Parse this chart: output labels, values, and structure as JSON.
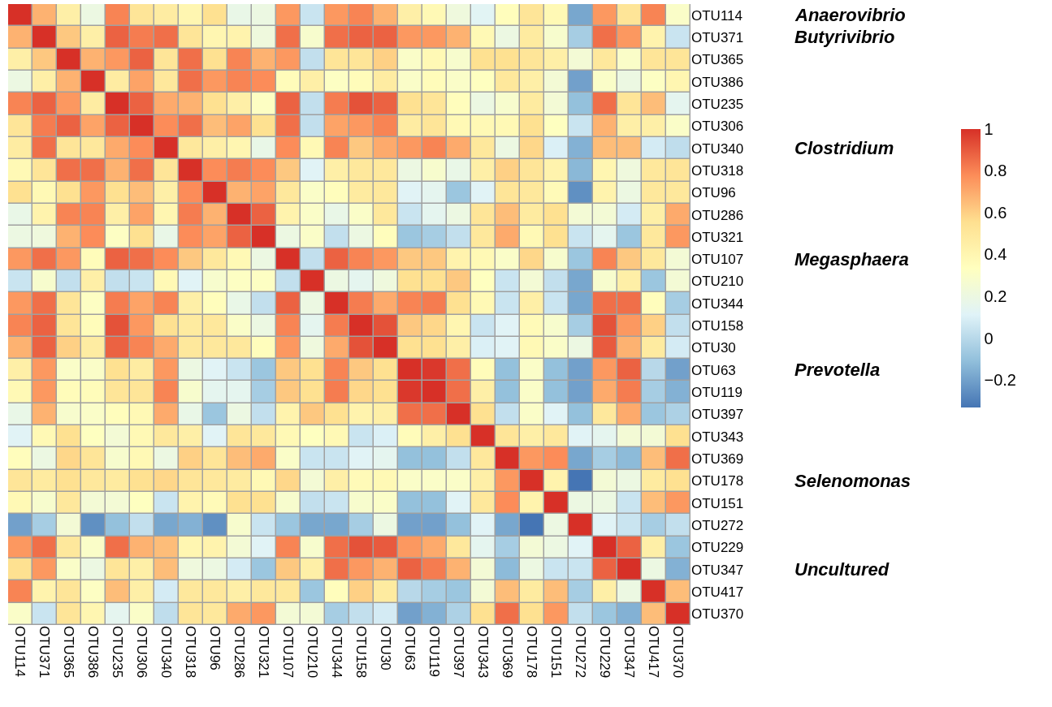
{
  "chart_data": {
    "type": "heatmap",
    "categories": [
      "OTU114",
      "OTU371",
      "OTU365",
      "OTU386",
      "OTU235",
      "OTU306",
      "OTU340",
      "OTU318",
      "OTU96",
      "OTU286",
      "OTU321",
      "OTU107",
      "OTU210",
      "OTU344",
      "OTU158",
      "OTU30",
      "OTU63",
      "OTU119",
      "OTU397",
      "OTU343",
      "OTU369",
      "OTU178",
      "OTU151",
      "OTU272",
      "OTU229",
      "OTU347",
      "OTU417",
      "OTU370"
    ],
    "y_categories": [
      "OTU114",
      "OTU371",
      "OTU365",
      "OTU386",
      "OTU235",
      "OTU306",
      "OTU340",
      "OTU318",
      "OTU96",
      "OTU286",
      "OTU321",
      "OTU107",
      "OTU210",
      "OTU344",
      "OTU158",
      "OTU30",
      "OTU63",
      "OTU119",
      "OTU397",
      "OTU343",
      "OTU369",
      "OTU178",
      "OTU151",
      "OTU272",
      "OTU229",
      "OTU347",
      "OTU417",
      "OTU370"
    ],
    "cells": [
      [
        1.0,
        0.68,
        0.45,
        0.2,
        0.8,
        0.52,
        0.47,
        0.4,
        0.55,
        0.18,
        0.2,
        0.75,
        0.05,
        0.75,
        0.8,
        0.68,
        0.45,
        0.38,
        0.22,
        0.13,
        0.35,
        0.52,
        0.38,
        -0.18,
        0.75,
        0.52,
        0.8,
        0.3
      ],
      [
        0.68,
        1.0,
        0.62,
        0.45,
        0.88,
        0.82,
        0.85,
        0.52,
        0.4,
        0.42,
        0.22,
        0.85,
        0.28,
        0.85,
        0.88,
        0.88,
        0.75,
        0.75,
        0.68,
        0.38,
        0.2,
        0.48,
        0.28,
        -0.05,
        0.85,
        0.75,
        0.42,
        0.05
      ],
      [
        0.45,
        0.62,
        1.0,
        0.68,
        0.75,
        0.88,
        0.52,
        0.85,
        0.55,
        0.8,
        0.68,
        0.75,
        0.03,
        0.52,
        0.52,
        0.6,
        0.3,
        0.38,
        0.28,
        0.55,
        0.55,
        0.52,
        0.45,
        0.25,
        0.5,
        0.3,
        0.52,
        0.52
      ],
      [
        0.2,
        0.45,
        0.68,
        1.0,
        0.47,
        0.72,
        0.5,
        0.85,
        0.75,
        0.8,
        0.78,
        0.36,
        0.45,
        0.32,
        0.36,
        0.47,
        0.3,
        0.36,
        0.3,
        0.33,
        0.5,
        0.45,
        0.25,
        -0.2,
        0.3,
        0.2,
        0.32,
        0.4
      ],
      [
        0.8,
        0.88,
        0.75,
        0.47,
        1.0,
        0.88,
        0.7,
        0.68,
        0.55,
        0.45,
        0.32,
        0.88,
        0.03,
        0.82,
        0.92,
        0.88,
        0.55,
        0.52,
        0.35,
        0.2,
        0.28,
        0.48,
        0.25,
        -0.1,
        0.85,
        0.52,
        0.65,
        0.15
      ],
      [
        0.52,
        0.82,
        0.88,
        0.72,
        0.88,
        1.0,
        0.78,
        0.85,
        0.65,
        0.72,
        0.55,
        0.85,
        0.03,
        0.72,
        0.75,
        0.8,
        0.47,
        0.52,
        0.38,
        0.38,
        0.38,
        0.55,
        0.33,
        0.05,
        0.68,
        0.45,
        0.45,
        0.3
      ],
      [
        0.47,
        0.85,
        0.52,
        0.5,
        0.7,
        0.78,
        1.0,
        0.5,
        0.45,
        0.4,
        0.18,
        0.78,
        0.38,
        0.8,
        0.62,
        0.7,
        0.75,
        0.8,
        0.7,
        0.5,
        0.2,
        0.58,
        0.1,
        -0.15,
        0.65,
        0.65,
        0.08,
        0.02
      ],
      [
        0.38,
        0.52,
        0.85,
        0.85,
        0.68,
        0.85,
        0.52,
        1.0,
        0.78,
        0.82,
        0.78,
        0.62,
        0.12,
        0.45,
        0.5,
        0.5,
        0.2,
        0.28,
        0.18,
        0.45,
        0.6,
        0.52,
        0.42,
        -0.13,
        0.4,
        0.22,
        0.5,
        0.52
      ],
      [
        0.55,
        0.38,
        0.55,
        0.75,
        0.55,
        0.65,
        0.45,
        0.78,
        1.0,
        0.68,
        0.72,
        0.5,
        0.3,
        0.35,
        0.48,
        0.5,
        0.12,
        0.15,
        -0.08,
        0.12,
        0.52,
        0.5,
        0.37,
        -0.25,
        0.42,
        0.2,
        0.5,
        0.5
      ],
      [
        0.18,
        0.42,
        0.8,
        0.8,
        0.45,
        0.72,
        0.4,
        0.82,
        0.68,
        1.0,
        0.88,
        0.42,
        0.3,
        0.18,
        0.3,
        0.5,
        0.05,
        0.15,
        0.2,
        0.52,
        0.65,
        0.48,
        0.55,
        0.25,
        0.25,
        0.08,
        0.45,
        0.7
      ],
      [
        0.2,
        0.22,
        0.68,
        0.78,
        0.32,
        0.55,
        0.18,
        0.78,
        0.72,
        0.88,
        1.0,
        0.2,
        0.3,
        0.03,
        0.2,
        0.35,
        -0.08,
        -0.05,
        0.03,
        0.5,
        0.7,
        0.38,
        0.55,
        0.05,
        0.15,
        -0.08,
        0.5,
        0.75
      ],
      [
        0.75,
        0.85,
        0.75,
        0.36,
        0.88,
        0.85,
        0.78,
        0.62,
        0.5,
        0.38,
        0.2,
        1.0,
        0.03,
        0.88,
        0.8,
        0.75,
        0.62,
        0.62,
        0.42,
        0.38,
        0.3,
        0.58,
        0.28,
        -0.08,
        0.8,
        0.62,
        0.5,
        0.25
      ],
      [
        0.05,
        0.28,
        0.03,
        0.45,
        0.03,
        0.05,
        0.38,
        0.12,
        0.28,
        0.32,
        0.32,
        0.03,
        1.0,
        0.2,
        0.15,
        0.22,
        0.55,
        0.55,
        0.62,
        0.33,
        0.05,
        0.25,
        0.03,
        -0.18,
        0.28,
        0.45,
        -0.08,
        0.25
      ],
      [
        0.75,
        0.85,
        0.52,
        0.32,
        0.82,
        0.72,
        0.8,
        0.45,
        0.35,
        0.18,
        0.03,
        0.88,
        0.2,
        1.0,
        0.82,
        0.7,
        0.8,
        0.82,
        0.55,
        0.38,
        0.05,
        0.45,
        0.05,
        -0.18,
        0.85,
        0.85,
        0.35,
        -0.05
      ],
      [
        0.8,
        0.88,
        0.52,
        0.36,
        0.92,
        0.75,
        0.55,
        0.48,
        0.5,
        0.3,
        0.2,
        0.8,
        0.15,
        0.82,
        1.0,
        0.92,
        0.62,
        0.58,
        0.4,
        0.05,
        0.12,
        0.37,
        0.28,
        -0.05,
        0.92,
        0.75,
        0.6,
        0.03
      ],
      [
        0.68,
        0.88,
        0.6,
        0.47,
        0.88,
        0.8,
        0.7,
        0.5,
        0.5,
        0.5,
        0.35,
        0.75,
        0.22,
        0.7,
        0.92,
        1.0,
        0.55,
        0.55,
        0.45,
        0.1,
        0.12,
        0.38,
        0.3,
        0.2,
        0.9,
        0.68,
        0.48,
        0.08
      ],
      [
        0.45,
        0.75,
        0.3,
        0.3,
        0.55,
        0.47,
        0.75,
        0.2,
        0.12,
        0.05,
        -0.08,
        0.62,
        0.55,
        0.8,
        0.62,
        0.55,
        1.0,
        0.98,
        0.85,
        0.36,
        -0.1,
        0.3,
        -0.1,
        -0.2,
        0.75,
        0.88,
        0.0,
        -0.2
      ],
      [
        0.38,
        0.75,
        0.36,
        0.36,
        0.52,
        0.52,
        0.8,
        0.28,
        0.15,
        0.15,
        -0.05,
        0.62,
        0.55,
        0.82,
        0.58,
        0.55,
        0.98,
        1.0,
        0.85,
        0.45,
        -0.1,
        0.3,
        -0.1,
        -0.2,
        0.7,
        0.82,
        -0.05,
        -0.15
      ],
      [
        0.18,
        0.68,
        0.28,
        0.3,
        0.35,
        0.38,
        0.7,
        0.18,
        -0.08,
        0.2,
        0.03,
        0.42,
        0.62,
        0.55,
        0.42,
        0.45,
        0.85,
        0.85,
        1.0,
        0.55,
        0.03,
        0.3,
        0.12,
        -0.1,
        0.5,
        0.7,
        -0.08,
        -0.03
      ],
      [
        0.12,
        0.38,
        0.55,
        0.33,
        0.25,
        0.38,
        0.5,
        0.45,
        0.12,
        0.52,
        0.5,
        0.38,
        0.33,
        0.38,
        0.05,
        0.1,
        0.36,
        0.45,
        0.55,
        1.0,
        0.52,
        0.45,
        0.5,
        0.12,
        0.15,
        0.25,
        0.25,
        0.55
      ],
      [
        0.35,
        0.2,
        0.58,
        0.52,
        0.28,
        0.38,
        0.2,
        0.6,
        0.52,
        0.65,
        0.7,
        0.3,
        0.05,
        0.05,
        0.12,
        0.15,
        -0.1,
        -0.1,
        0.03,
        0.5,
        1.0,
        0.75,
        0.78,
        -0.18,
        -0.05,
        -0.12,
        0.65,
        0.85
      ],
      [
        0.52,
        0.48,
        0.55,
        0.5,
        0.48,
        0.55,
        0.58,
        0.52,
        0.5,
        0.48,
        0.38,
        0.58,
        0.25,
        0.45,
        0.37,
        0.38,
        0.3,
        0.3,
        0.3,
        0.45,
        0.75,
        1.0,
        0.42,
        -0.33,
        0.25,
        0.2,
        0.48,
        0.55
      ],
      [
        0.38,
        0.28,
        0.5,
        0.25,
        0.25,
        0.33,
        0.05,
        0.42,
        0.37,
        0.55,
        0.55,
        0.28,
        0.03,
        0.05,
        0.28,
        0.3,
        -0.1,
        -0.1,
        0.12,
        0.5,
        0.78,
        0.42,
        1.0,
        0.2,
        0.2,
        0.05,
        0.65,
        0.75
      ],
      [
        -0.2,
        -0.05,
        0.25,
        -0.25,
        -0.1,
        0.03,
        -0.18,
        -0.15,
        -0.25,
        0.28,
        0.05,
        -0.08,
        -0.18,
        -0.18,
        -0.05,
        0.2,
        -0.2,
        -0.2,
        -0.1,
        0.12,
        -0.18,
        -0.33,
        0.2,
        1.0,
        0.12,
        0.05,
        -0.05,
        0.03
      ],
      [
        0.75,
        0.85,
        0.5,
        0.3,
        0.85,
        0.68,
        0.65,
        0.4,
        0.42,
        0.25,
        0.12,
        0.8,
        0.28,
        0.85,
        0.92,
        0.9,
        0.75,
        0.7,
        0.5,
        0.15,
        -0.05,
        0.25,
        0.2,
        0.12,
        1.0,
        0.88,
        0.45,
        -0.08
      ],
      [
        0.55,
        0.75,
        0.3,
        0.2,
        0.52,
        0.45,
        0.65,
        0.22,
        0.2,
        0.08,
        -0.08,
        0.62,
        0.45,
        0.85,
        0.75,
        0.68,
        0.88,
        0.82,
        0.68,
        0.25,
        -0.12,
        0.2,
        0.05,
        0.05,
        0.88,
        1.0,
        0.2,
        -0.15
      ],
      [
        0.8,
        0.42,
        0.52,
        0.32,
        0.65,
        0.45,
        0.08,
        0.5,
        0.5,
        0.45,
        0.5,
        0.5,
        -0.08,
        0.35,
        0.6,
        0.48,
        0.0,
        -0.05,
        -0.08,
        0.25,
        0.65,
        0.48,
        0.65,
        -0.05,
        0.45,
        0.2,
        1.0,
        0.65
      ],
      [
        0.3,
        0.05,
        0.52,
        0.4,
        0.15,
        0.3,
        0.02,
        0.52,
        0.5,
        0.7,
        0.75,
        0.25,
        0.25,
        -0.05,
        0.03,
        0.08,
        -0.2,
        -0.15,
        -0.03,
        0.55,
        0.85,
        0.55,
        0.75,
        0.03,
        -0.08,
        -0.15,
        0.65,
        1.0
      ]
    ],
    "colors": [
      "#4575b4",
      "#91bfdb",
      "#e0f3f8",
      "#ffffbf",
      "#fee090",
      "#fc8d59",
      "#d73027"
    ],
    "clim": [
      -0.33,
      1
    ],
    "cticks": [
      {
        "value": -0.2,
        "label": "−0.2"
      },
      0,
      0.2,
      0.4,
      0.6,
      0.8,
      1
    ],
    "y2_categories": [
      "Anaerovibrio",
      "Butyrivibrio",
      null,
      null,
      null,
      null,
      "Clostridium",
      null,
      null,
      null,
      null,
      "Megasphaera",
      null,
      null,
      null,
      null,
      "Prevotella",
      null,
      null,
      null,
      null,
      "Selenomonas",
      null,
      null,
      null,
      "Uncultured",
      null,
      null
    ]
  }
}
